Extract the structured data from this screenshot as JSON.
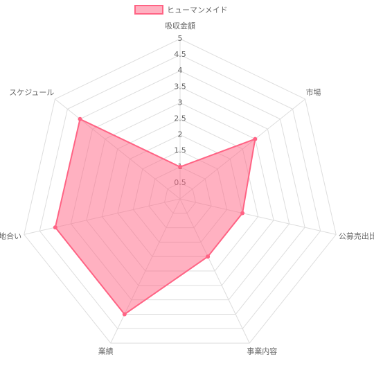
{
  "chart_data": {
    "type": "radar",
    "categories": [
      "吸収金額",
      "市場",
      "公募売出比",
      "事業内容",
      "業績",
      "地合い",
      "スケジュール"
    ],
    "series": [
      {
        "name": "ヒューマンメイド",
        "color": "#ff6384",
        "values": [
          1,
          3,
          2,
          2,
          4,
          4,
          4
        ]
      }
    ],
    "ylim": [
      0,
      5
    ],
    "yticks": [
      0.5,
      1,
      1.5,
      2,
      2.5,
      3,
      3.5,
      4,
      4.5,
      5
    ],
    "grid": true,
    "legend": "top"
  }
}
